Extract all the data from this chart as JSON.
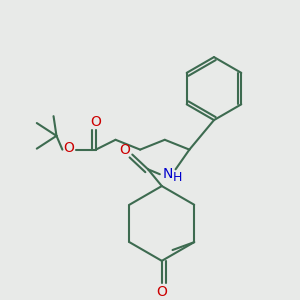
{
  "bg_color": "#e8eae8",
  "bond_color": "#3d6b50",
  "oxygen_color": "#cc0000",
  "nitrogen_color": "#0000cc",
  "line_width": 1.5,
  "figsize": [
    3.0,
    3.0
  ],
  "dpi": 100,
  "xlim": [
    0,
    300
  ],
  "ylim": [
    0,
    300
  ]
}
